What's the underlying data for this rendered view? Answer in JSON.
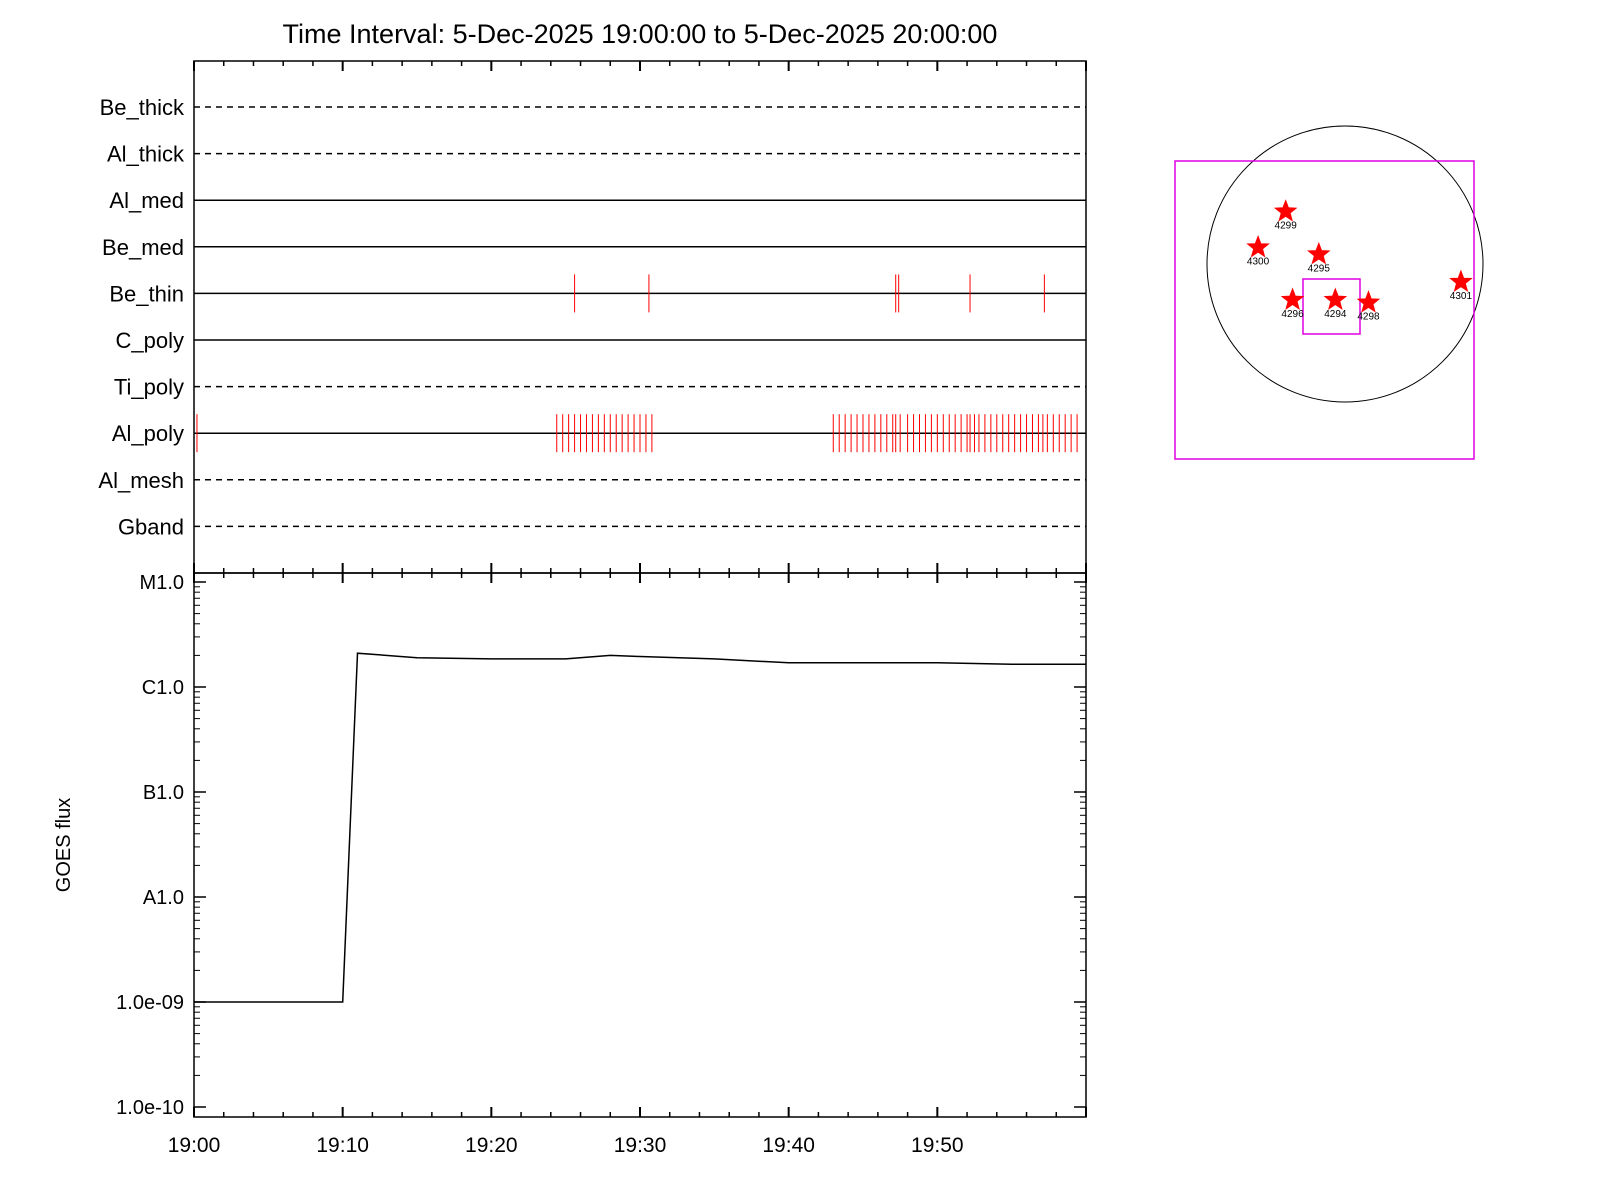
{
  "title": "Time Interval:  5-Dec-2025 19:00:00 to  5-Dec-2025 20:00:00",
  "colors": {
    "event": "#ff0000",
    "fov": "#e000e0",
    "axis": "#000000",
    "star": "#ff0000"
  },
  "chart_data": [
    {
      "type": "timeline",
      "x_range": [
        "19:00",
        "20:00"
      ],
      "x_tick_labels": [
        "19:00",
        "19:10",
        "19:20",
        "19:30",
        "19:40",
        "19:50"
      ],
      "channels": [
        {
          "name": "Be_thick",
          "line": "dashed",
          "events": []
        },
        {
          "name": "Al_thick",
          "line": "dashed",
          "events": []
        },
        {
          "name": "Al_med",
          "line": "solid",
          "events": []
        },
        {
          "name": "Be_med",
          "line": "solid",
          "events": []
        },
        {
          "name": "Be_thin",
          "line": "solid",
          "events": [
            "19:25.6",
            "19:30.6",
            "19:47.2",
            "19:47.4",
            "19:52.2",
            "19:57.2"
          ]
        },
        {
          "name": "C_poly",
          "line": "solid",
          "events": []
        },
        {
          "name": "Ti_poly",
          "line": "dashed",
          "events": []
        },
        {
          "name": "Al_poly",
          "line": "solid",
          "events": [
            "19:00.2",
            "19:24.4",
            "19:24.8",
            "19:25.2",
            "19:25.6",
            "19:26.0",
            "19:26.4",
            "19:26.8",
            "19:27.2",
            "19:27.6",
            "19:28.0",
            "19:28.4",
            "19:28.8",
            "19:29.2",
            "19:29.6",
            "19:30.0",
            "19:30.4",
            "19:30.8",
            "19:43.0",
            "19:43.4",
            "19:43.8",
            "19:44.2",
            "19:44.6",
            "19:45.0",
            "19:45.4",
            "19:45.8",
            "19:46.2",
            "19:46.6",
            "19:47.0",
            "19:47.2",
            "19:47.5",
            "19:48.0",
            "19:48.4",
            "19:48.8",
            "19:49.2",
            "19:49.6",
            "19:50.0",
            "19:50.4",
            "19:50.8",
            "19:51.2",
            "19:51.6",
            "19:52.0",
            "19:52.2",
            "19:52.5",
            "19:52.8",
            "19:53.2",
            "19:53.6",
            "19:54.0",
            "19:54.4",
            "19:54.8",
            "19:55.2",
            "19:55.6",
            "19:56.0",
            "19:56.4",
            "19:56.8",
            "19:57.1",
            "19:57.4",
            "19:57.8",
            "19:58.2",
            "19:58.6",
            "19:59.0",
            "19:59.4"
          ]
        },
        {
          "name": "Al_mesh",
          "line": "dashed",
          "events": []
        },
        {
          "name": "Gband",
          "line": "dashed",
          "events": []
        }
      ]
    },
    {
      "type": "line",
      "ylabel": "GOES flux",
      "y_scale": "log",
      "ylim": [
        1e-10,
        1e-05
      ],
      "y_tick_values": [
        1e-10,
        1e-09,
        1e-08,
        1e-07,
        1e-06,
        1e-05
      ],
      "y_tick_labels": [
        "1.0e-10",
        "1.0e-09",
        "A1.0",
        "B1.0",
        "C1.0",
        "M1.0"
      ],
      "x_range": [
        "19:00",
        "20:00"
      ],
      "x_tick_labels": [
        "19:00",
        "19:10",
        "19:20",
        "19:30",
        "19:40",
        "19:50"
      ],
      "series": [
        {
          "x": [
            "19:00",
            "19:10",
            "19:11",
            "19:15",
            "19:20",
            "19:25",
            "19:28",
            "19:30",
            "19:35",
            "19:40",
            "19:45",
            "19:50",
            "19:55",
            "20:00"
          ],
          "y": [
            1e-09,
            1e-09,
            2.1e-06,
            1.9e-06,
            1.85e-06,
            1.85e-06,
            2e-06,
            1.95e-06,
            1.85e-06,
            1.7e-06,
            1.7e-06,
            1.7e-06,
            1.65e-06,
            1.65e-06
          ]
        }
      ]
    },
    {
      "type": "scatter",
      "subject": "solar disk map",
      "points": [
        {
          "label": "4299",
          "x": -0.43,
          "y": 0.38
        },
        {
          "label": "4300",
          "x": -0.63,
          "y": 0.12
        },
        {
          "label": "4295",
          "x": -0.19,
          "y": 0.07
        },
        {
          "label": "4296",
          "x": -0.38,
          "y": -0.26
        },
        {
          "label": "4294",
          "x": -0.07,
          "y": -0.26
        },
        {
          "label": "4298",
          "x": 0.17,
          "y": -0.28
        },
        {
          "label": "4301",
          "x": 0.84,
          "y": -0.13
        }
      ]
    }
  ]
}
